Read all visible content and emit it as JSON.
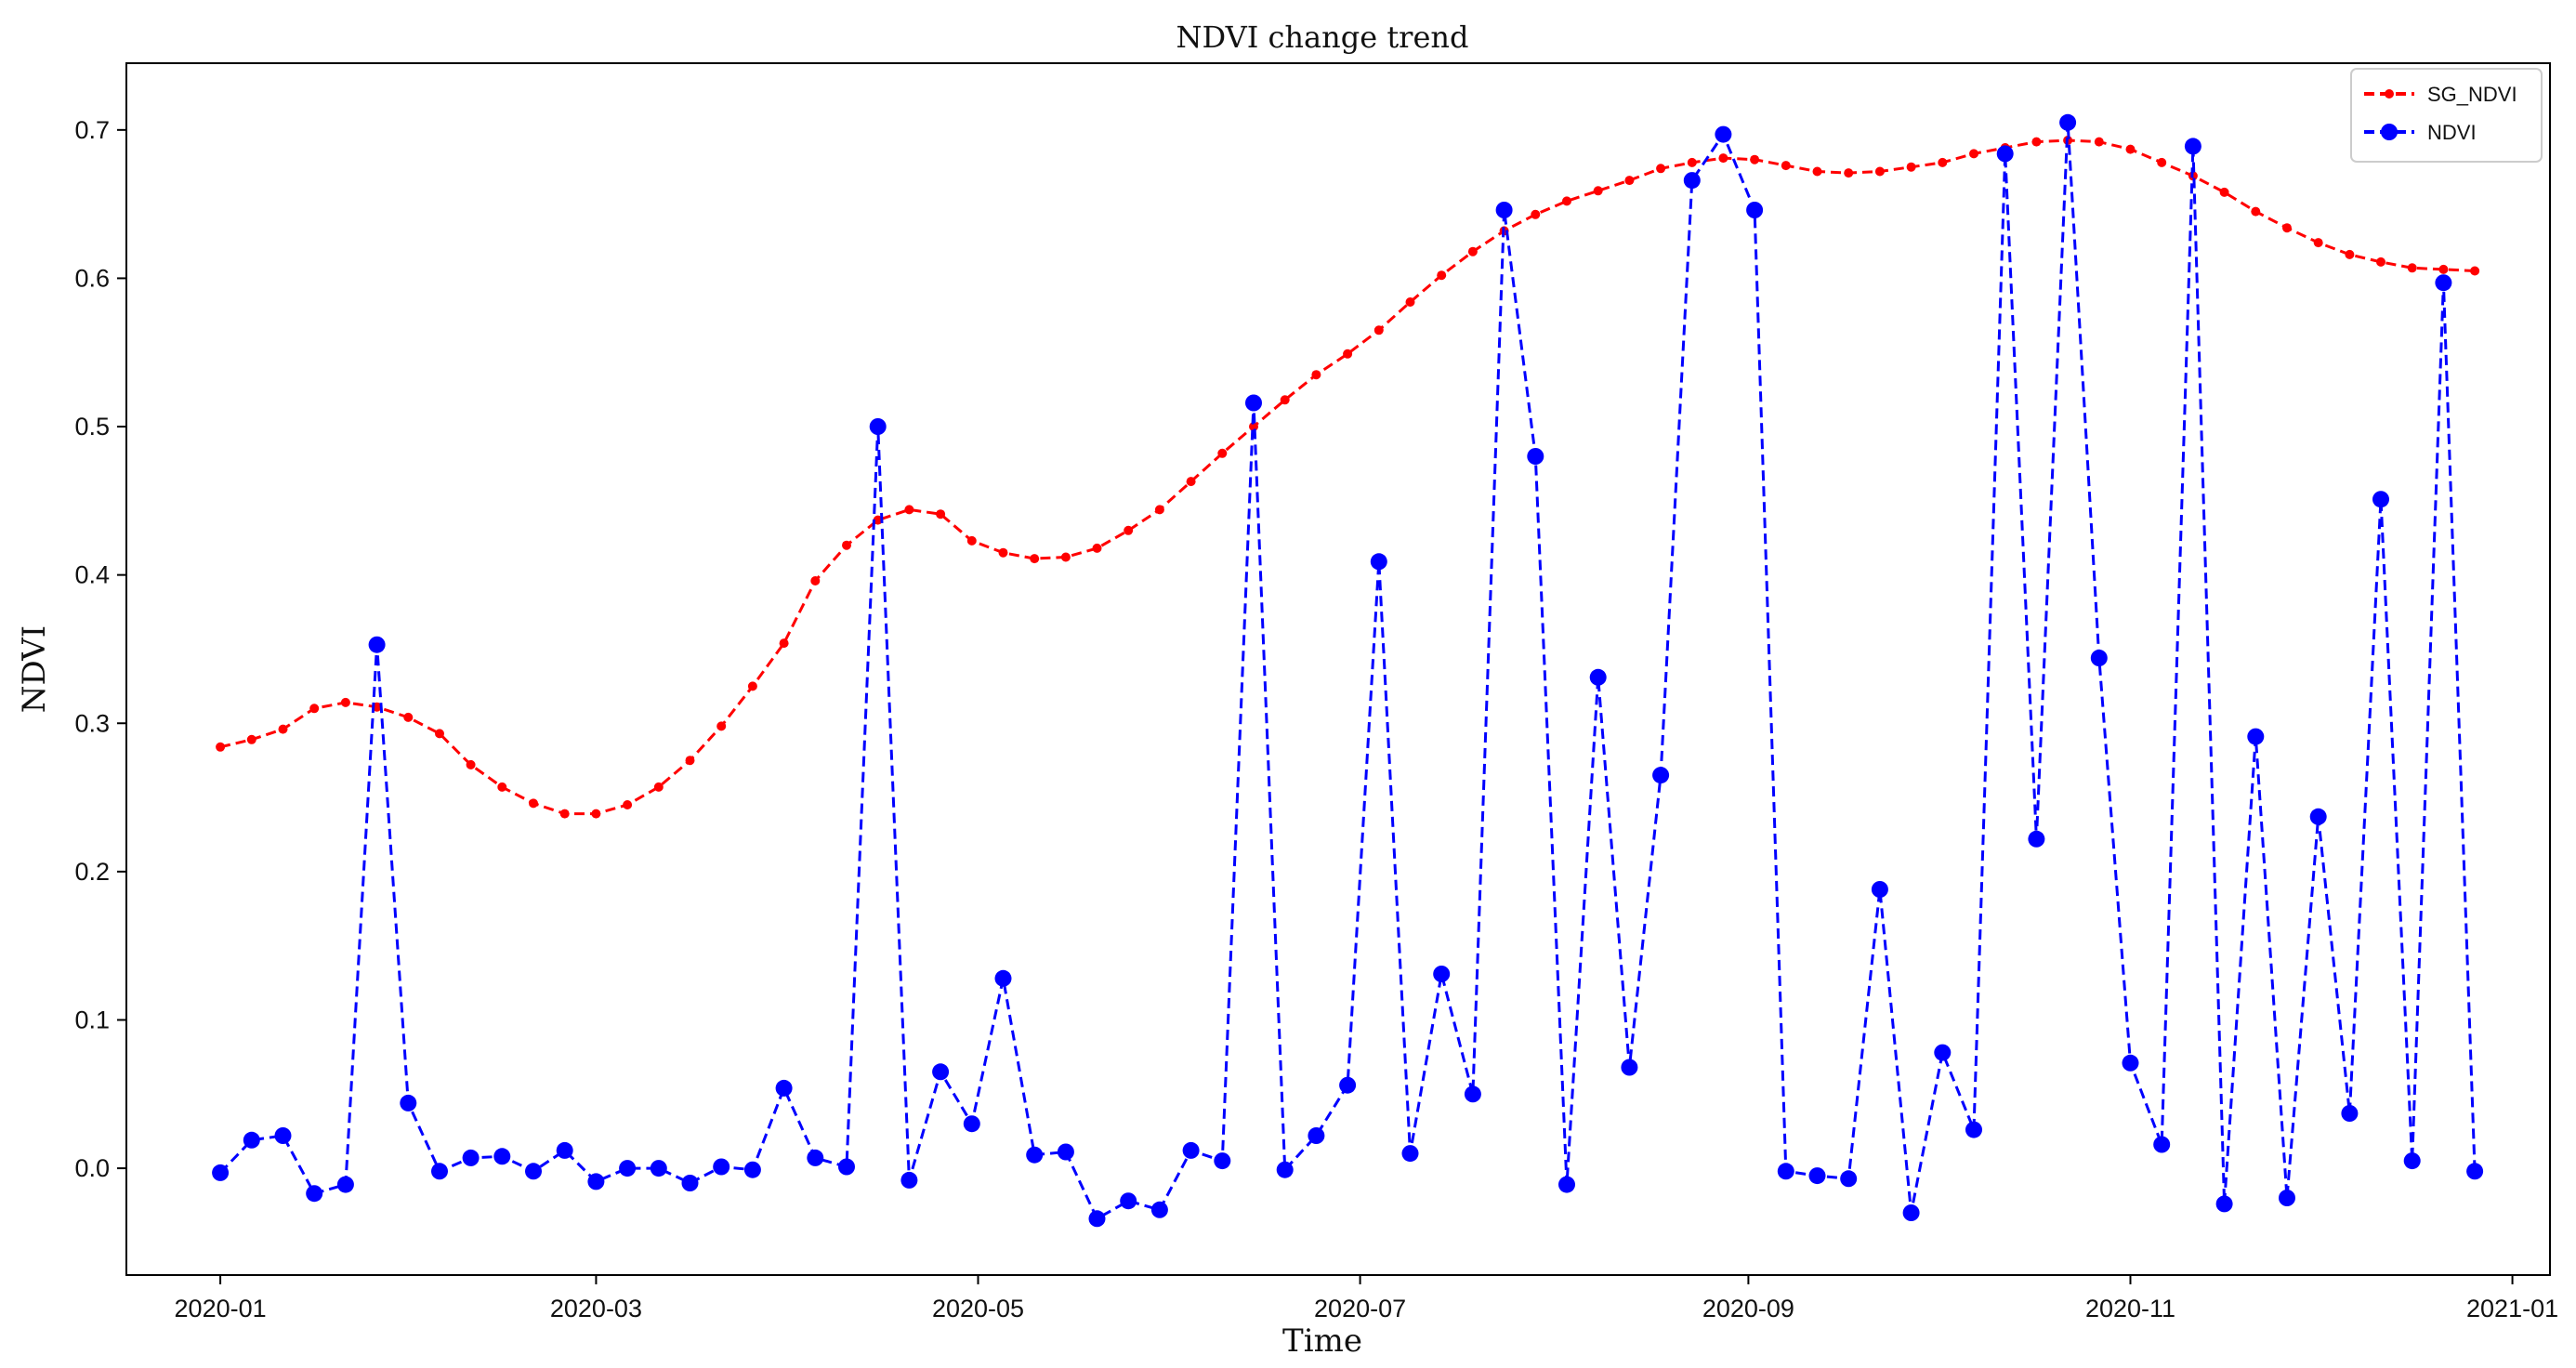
{
  "chart_data": {
    "type": "line",
    "title": "NDVI change trend",
    "xlabel": "Time",
    "ylabel": "NDVI",
    "x_ticks": [
      "2020-01",
      "2020-03",
      "2020-05",
      "2020-07",
      "2020-09",
      "2020-11",
      "2021-01"
    ],
    "y_ticks": [
      "0.0",
      "0.1",
      "0.2",
      "0.3",
      "0.4",
      "0.5",
      "0.6",
      "0.7"
    ],
    "xlim": [
      "2019-12-17",
      "2021-01-07"
    ],
    "ylim": [
      -0.072,
      0.745
    ],
    "grid": false,
    "legend_position": "top-right",
    "series": [
      {
        "name": "SG_NDVI",
        "color": "#ff0000",
        "style": "dashed with small dots",
        "x": [
          "2020-01-01",
          "2020-01-06",
          "2020-01-11",
          "2020-01-16",
          "2020-01-21",
          "2020-01-26",
          "2020-01-31",
          "2020-02-05",
          "2020-02-10",
          "2020-02-15",
          "2020-02-20",
          "2020-02-25",
          "2020-03-01",
          "2020-03-06",
          "2020-03-11",
          "2020-03-16",
          "2020-03-21",
          "2020-03-26",
          "2020-03-31",
          "2020-04-05",
          "2020-04-10",
          "2020-04-15",
          "2020-04-20",
          "2020-04-25",
          "2020-04-30",
          "2020-05-05",
          "2020-05-10",
          "2020-05-15",
          "2020-05-20",
          "2020-05-25",
          "2020-05-30",
          "2020-06-04",
          "2020-06-09",
          "2020-06-14",
          "2020-06-19",
          "2020-06-24",
          "2020-06-29",
          "2020-07-04",
          "2020-07-09",
          "2020-07-14",
          "2020-07-19",
          "2020-07-24",
          "2020-07-29",
          "2020-08-03",
          "2020-08-08",
          "2020-08-13",
          "2020-08-18",
          "2020-08-23",
          "2020-08-28",
          "2020-09-02",
          "2020-09-07",
          "2020-09-12",
          "2020-09-17",
          "2020-09-22",
          "2020-09-27",
          "2020-10-02",
          "2020-10-07",
          "2020-10-12",
          "2020-10-17",
          "2020-10-22",
          "2020-10-27",
          "2020-11-01",
          "2020-11-06",
          "2020-11-11",
          "2020-11-16",
          "2020-11-21",
          "2020-11-26",
          "2020-12-01",
          "2020-12-06",
          "2020-12-11",
          "2020-12-16",
          "2020-12-21",
          "2020-12-26"
        ],
        "values": [
          0.284,
          0.289,
          0.296,
          0.31,
          0.314,
          0.311,
          0.304,
          0.293,
          0.272,
          0.257,
          0.246,
          0.239,
          0.239,
          0.245,
          0.257,
          0.275,
          0.298,
          0.325,
          0.354,
          0.396,
          0.42,
          0.437,
          0.444,
          0.441,
          0.423,
          0.415,
          0.411,
          0.412,
          0.418,
          0.43,
          0.444,
          0.463,
          0.482,
          0.5,
          0.518,
          0.535,
          0.549,
          0.565,
          0.584,
          0.602,
          0.618,
          0.632,
          0.643,
          0.652,
          0.659,
          0.666,
          0.674,
          0.678,
          0.681,
          0.68,
          0.676,
          0.672,
          0.671,
          0.672,
          0.675,
          0.678,
          0.684,
          0.688,
          0.692,
          0.693,
          0.692,
          0.687,
          0.678,
          0.669,
          0.658,
          0.645,
          0.634,
          0.624,
          0.616,
          0.611,
          0.607,
          0.606,
          0.605
        ]
      },
      {
        "name": "NDVI",
        "color": "#0000ff",
        "style": "dashed with round markers",
        "x": [
          "2020-01-01",
          "2020-01-06",
          "2020-01-11",
          "2020-01-16",
          "2020-01-21",
          "2020-01-26",
          "2020-01-31",
          "2020-02-05",
          "2020-02-10",
          "2020-02-15",
          "2020-02-20",
          "2020-02-25",
          "2020-03-01",
          "2020-03-06",
          "2020-03-11",
          "2020-03-16",
          "2020-03-21",
          "2020-03-26",
          "2020-03-31",
          "2020-04-05",
          "2020-04-10",
          "2020-04-15",
          "2020-04-20",
          "2020-04-25",
          "2020-04-30",
          "2020-05-05",
          "2020-05-10",
          "2020-05-15",
          "2020-05-20",
          "2020-05-25",
          "2020-05-30",
          "2020-06-04",
          "2020-06-09",
          "2020-06-14",
          "2020-06-19",
          "2020-06-24",
          "2020-06-29",
          "2020-07-04",
          "2020-07-09",
          "2020-07-14",
          "2020-07-19",
          "2020-07-24",
          "2020-07-29",
          "2020-08-03",
          "2020-08-08",
          "2020-08-13",
          "2020-08-18",
          "2020-08-23",
          "2020-08-28",
          "2020-09-02",
          "2020-09-07",
          "2020-09-12",
          "2020-09-17",
          "2020-09-22",
          "2020-09-27",
          "2020-10-02",
          "2020-10-07",
          "2020-10-12",
          "2020-10-17",
          "2020-10-22",
          "2020-10-27",
          "2020-11-01",
          "2020-11-06",
          "2020-11-11",
          "2020-11-16",
          "2020-11-21",
          "2020-11-26",
          "2020-12-01",
          "2020-12-06",
          "2020-12-11",
          "2020-12-16",
          "2020-12-21",
          "2020-12-26"
        ],
        "values": [
          -0.003,
          0.019,
          0.022,
          -0.017,
          -0.011,
          0.353,
          0.044,
          -0.002,
          0.007,
          0.008,
          -0.002,
          0.012,
          -0.009,
          0.0,
          0.0,
          -0.01,
          0.001,
          -0.001,
          0.054,
          0.007,
          0.001,
          0.5,
          -0.008,
          0.065,
          0.03,
          0.128,
          0.009,
          0.011,
          -0.034,
          -0.022,
          -0.028,
          0.012,
          0.005,
          0.516,
          -0.001,
          0.022,
          0.056,
          0.409,
          0.01,
          0.131,
          0.05,
          0.646,
          0.48,
          -0.011,
          0.331,
          0.068,
          0.265,
          0.666,
          0.697,
          0.646,
          -0.002,
          -0.005,
          -0.007,
          0.188,
          -0.03,
          0.078,
          0.026,
          0.684,
          0.222,
          0.705,
          0.344,
          0.071,
          0.016,
          0.689,
          -0.024,
          0.291,
          -0.02,
          0.237,
          0.037,
          0.451,
          0.005,
          0.597,
          -0.002
        ]
      }
    ]
  }
}
